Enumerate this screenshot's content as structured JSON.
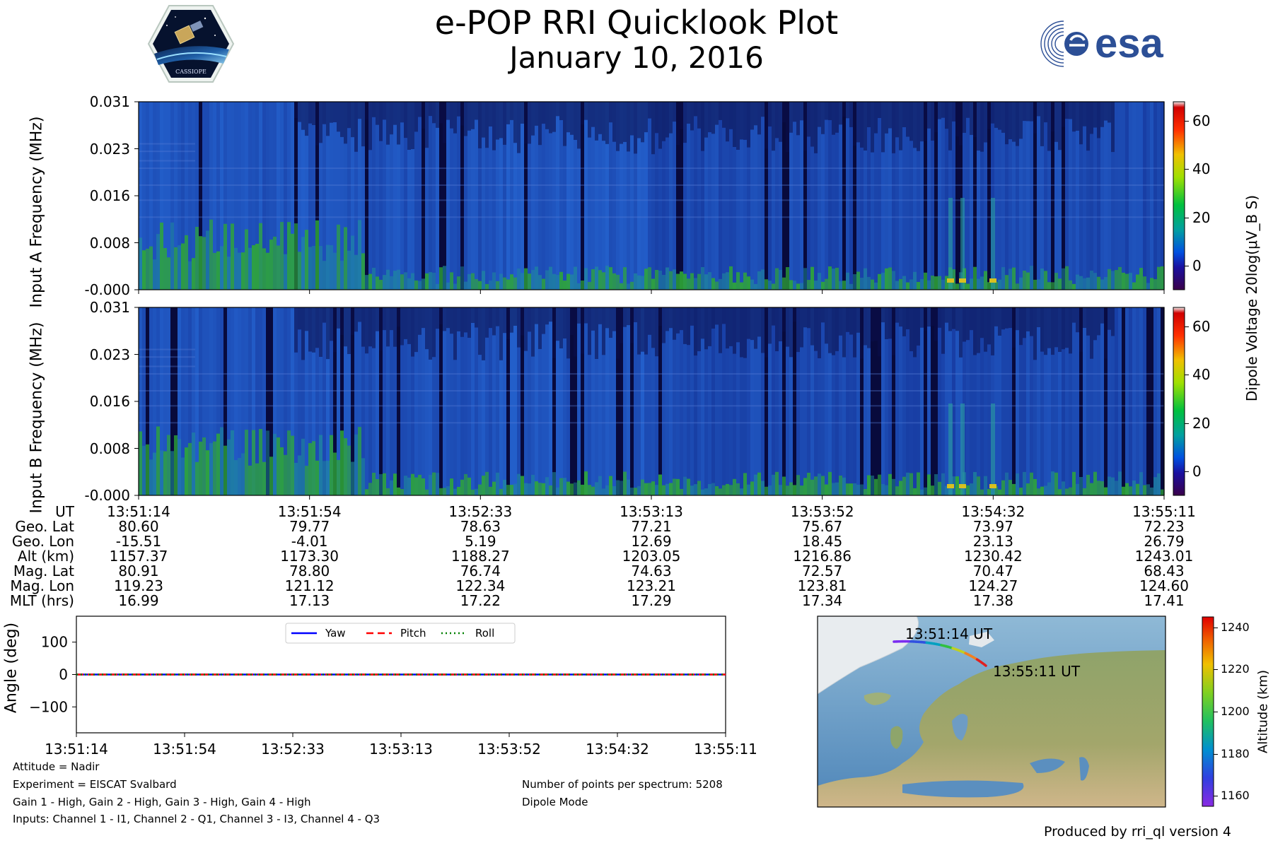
{
  "header": {
    "title": "e-POP RRI Quicklook Plot",
    "date": "January 10, 2016",
    "left_logo_text": "CASSIOPE",
    "right_logo_text": "esa"
  },
  "colors": {
    "spectrogram_low": "#0a0a3a",
    "spectrogram_mid": "#1e46c8",
    "spectrogram_high": "#2ea82e",
    "yaw": "#0000ff",
    "pitch": "#ff0000",
    "roll": "#008000"
  },
  "chart_data": [
    {
      "type": "heatmap",
      "name": "Input A",
      "ylabel": "Input A Frequency (MHz)",
      "yticks": [
        "0.031",
        "0.023",
        "0.016",
        "0.008",
        "-0.000"
      ],
      "ylim": [
        0,
        0.031
      ],
      "x_ticks": [
        "13:51:14",
        "13:51:54",
        "13:52:33",
        "13:53:13",
        "13:53:52",
        "13:54:32",
        "13:55:11"
      ],
      "colorbar_label": "Dipole Voltage 20log(μV_B S)",
      "colorbar_ticks": [
        "60",
        "40",
        "20",
        "0"
      ],
      "colorbar_range": [
        -10,
        68
      ]
    },
    {
      "type": "heatmap",
      "name": "Input B",
      "ylabel": "Input B Frequency (MHz)",
      "yticks": [
        "0.031",
        "0.023",
        "0.016",
        "0.008",
        "-0.000"
      ],
      "ylim": [
        0,
        0.031
      ],
      "x_ticks": [
        "13:51:14",
        "13:51:54",
        "13:52:33",
        "13:53:13",
        "13:53:52",
        "13:54:32",
        "13:55:11"
      ],
      "colorbar_ticks": [
        "60",
        "40",
        "20",
        "0"
      ],
      "colorbar_range": [
        -10,
        68
      ]
    },
    {
      "type": "line",
      "name": "Attitude",
      "ylabel": "Angle (deg)",
      "yticks": [
        "100",
        "0",
        "−100"
      ],
      "ylim": [
        -180,
        180
      ],
      "x": [
        "13:51:14",
        "13:51:54",
        "13:52:33",
        "13:53:13",
        "13:53:52",
        "13:54:32",
        "13:55:11"
      ],
      "series": [
        {
          "name": "Yaw",
          "values": [
            0,
            0,
            0,
            0,
            0,
            0,
            0
          ]
        },
        {
          "name": "Pitch",
          "values": [
            0,
            0,
            0,
            0,
            0,
            0,
            0
          ]
        },
        {
          "name": "Roll",
          "values": [
            0,
            0,
            0,
            0,
            0,
            0,
            0
          ]
        }
      ],
      "legend_position": "top-center"
    },
    {
      "type": "scatter",
      "name": "Ground track map",
      "start_label": "13:51:14 UT",
      "end_label": "13:55:11 UT",
      "colorbar_label": "Altitude (km)",
      "colorbar_ticks": [
        "1240",
        "1220",
        "1200",
        "1180",
        "1160"
      ],
      "colorbar_range": [
        1155,
        1245
      ]
    }
  ],
  "ephemeris": {
    "labels": [
      "UT",
      "Geo. Lat",
      "Geo. Lon",
      "Alt (km)",
      "Mag. Lat",
      "Mag. Lon",
      "MLT (hrs)"
    ],
    "columns": [
      [
        "13:51:14",
        "80.60",
        "-15.51",
        "1157.37",
        "80.91",
        "119.23",
        "16.99"
      ],
      [
        "13:51:54",
        "79.77",
        "-4.01",
        "1173.30",
        "78.80",
        "121.12",
        "17.13"
      ],
      [
        "13:52:33",
        "78.63",
        "5.19",
        "1188.27",
        "76.74",
        "122.34",
        "17.22"
      ],
      [
        "13:53:13",
        "77.21",
        "12.69",
        "1203.05",
        "74.63",
        "123.21",
        "17.29"
      ],
      [
        "13:53:52",
        "75.67",
        "18.45",
        "1216.86",
        "72.57",
        "123.81",
        "17.34"
      ],
      [
        "13:54:32",
        "73.97",
        "23.13",
        "1230.42",
        "70.47",
        "124.27",
        "17.38"
      ],
      [
        "13:55:11",
        "72.23",
        "26.79",
        "1243.01",
        "68.43",
        "124.60",
        "17.41"
      ]
    ]
  },
  "footnotes": {
    "attitude": "Attitude = Nadir",
    "experiment": "Experiment = EISCAT Svalbard",
    "gains": "Gain 1 - High, Gain 2 - High, Gain 3 - High, Gain 4 - High",
    "inputs": "Inputs: Channel 1 - I1, Channel 2 - Q1, Channel 3 - I3, Channel 4 - Q3",
    "points": "Number of points per spectrum: 5208",
    "mode": "Dipole Mode",
    "produced_by": "Produced by rri_ql version 4"
  }
}
